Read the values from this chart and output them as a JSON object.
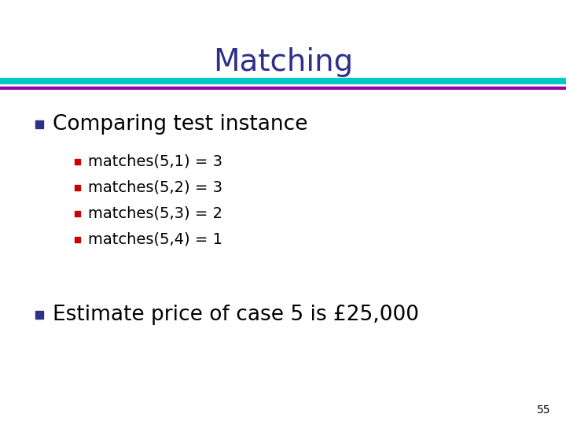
{
  "title": "Matching",
  "title_color": "#2E308A",
  "title_fontsize": 28,
  "line1_color": "#00C8C8",
  "line2_color": "#9900AA",
  "bg_color": "#FFFFFF",
  "bullet1_color": "#2E308A",
  "bullet2_color": "#CC0000",
  "l1_text": "Comparing test instance",
  "l1_fontsize": 19,
  "sub_items": [
    "matches(5,1) = 3",
    "matches(5,2) = 3",
    "matches(5,3) = 2",
    "matches(5,4) = 1"
  ],
  "sub_fontsize": 14,
  "l2_text": "Estimate price of case 5 is £25,000",
  "l2_fontsize": 19,
  "page_number": "55",
  "page_number_fontsize": 10
}
